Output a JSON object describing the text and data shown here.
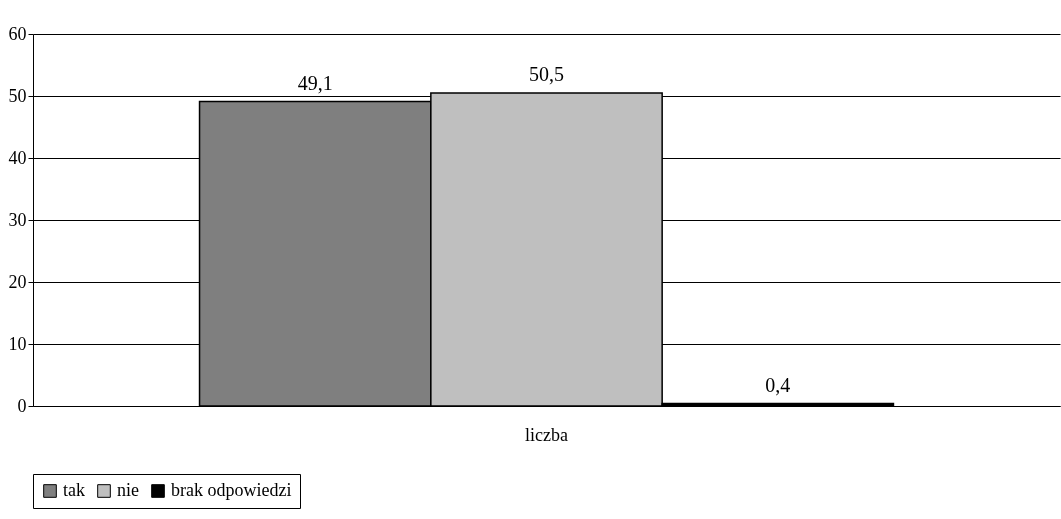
{
  "chart_data": {
    "type": "bar",
    "categories": [
      "liczba"
    ],
    "series": [
      {
        "name": "tak",
        "color": "#7f7f7f",
        "values": [
          49.1
        ],
        "value_labels": [
          "49,1"
        ]
      },
      {
        "name": "nie",
        "color": "#bfbfbf",
        "values": [
          50.5
        ],
        "value_labels": [
          "50,5"
        ]
      },
      {
        "name": "brak odpowiedzi",
        "color": "#000000",
        "values": [
          0.4
        ],
        "value_labels": [
          "0,4"
        ]
      }
    ],
    "ylim": [
      0,
      60
    ],
    "yticks": [
      0,
      10,
      20,
      30,
      40,
      50,
      60
    ],
    "grid": "y",
    "legend": "bottom"
  }
}
